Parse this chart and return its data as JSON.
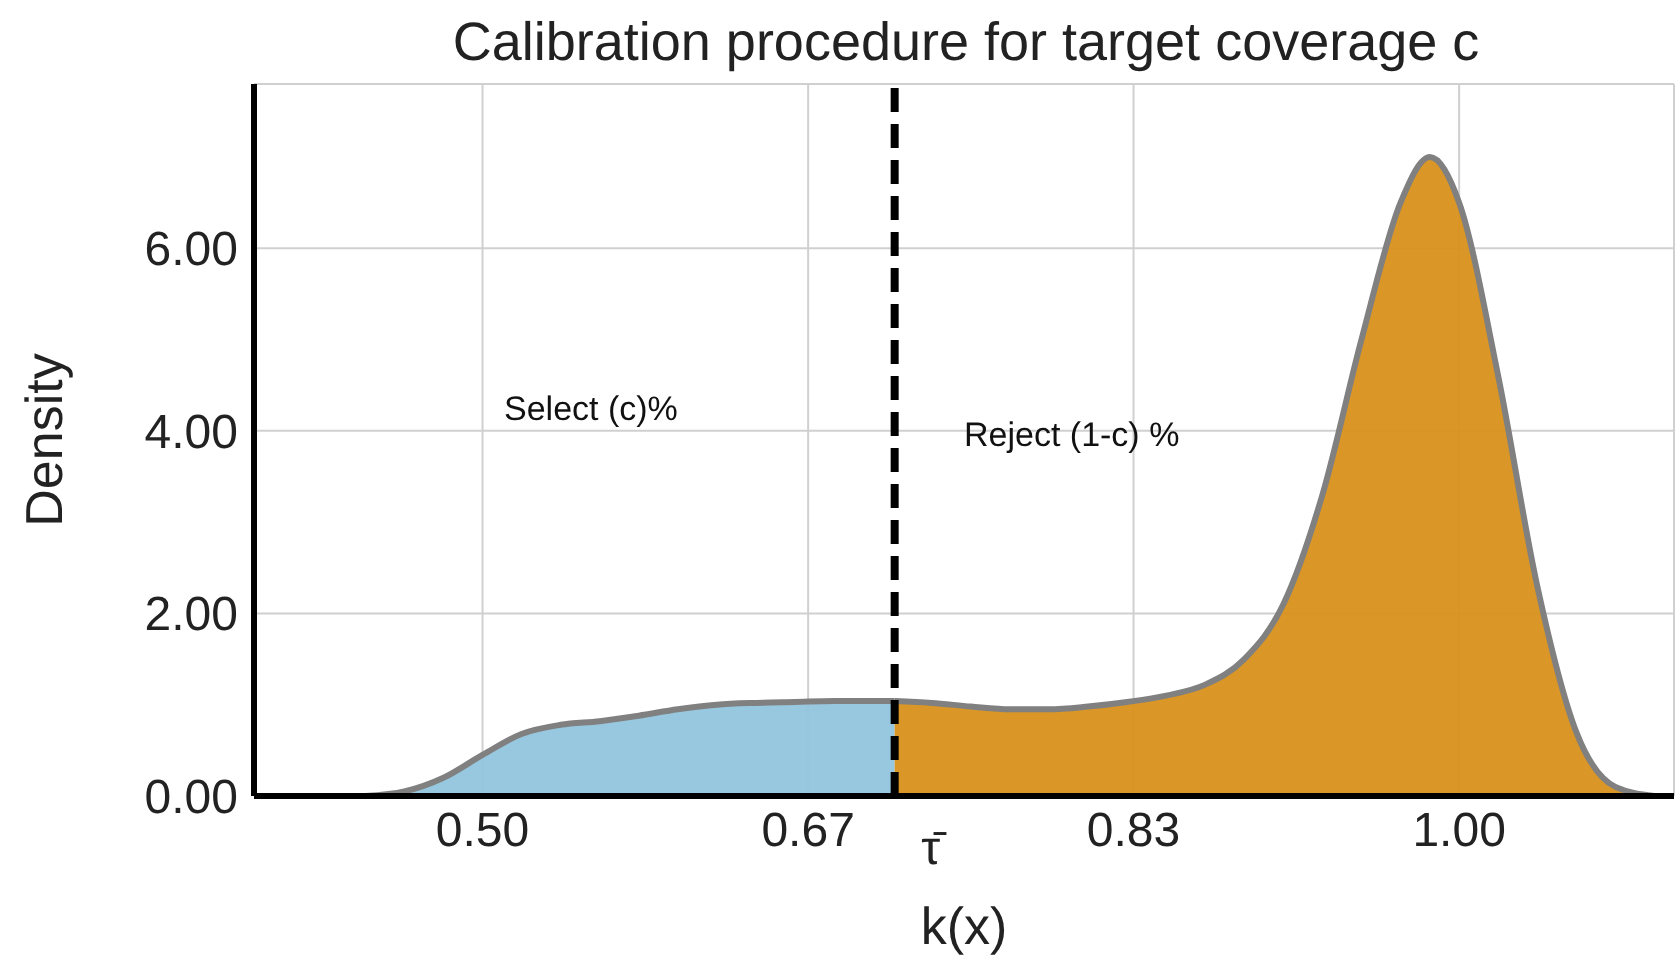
{
  "chart_data": {
    "type": "area",
    "title": "Calibration procedure for target coverage c",
    "xlabel": "k(x)",
    "ylabel": "Density",
    "series": [
      {
        "color": "#92c5de",
        "x": [
          0.44,
          0.46,
          0.48,
          0.5,
          0.52,
          0.54,
          0.56,
          0.58,
          0.6,
          0.62,
          0.64,
          0.66,
          0.68,
          0.7,
          0.711
        ],
        "values": [
          0,
          0.05,
          0.2,
          0.45,
          0.68,
          0.78,
          0.82,
          0.88,
          0.95,
          1.0,
          1.02,
          1.03,
          1.04,
          1.04,
          1.04
        ]
      },
      {
        "color": "#d8901a",
        "x": [
          0.711,
          0.73,
          0.75,
          0.77,
          0.79,
          0.81,
          0.83,
          0.85,
          0.87,
          0.89,
          0.91,
          0.93,
          0.95,
          0.97,
          0.985,
          1.0,
          1.02,
          1.04,
          1.06,
          1.08,
          1.1
        ],
        "values": [
          1.04,
          1.02,
          0.98,
          0.95,
          0.95,
          0.98,
          1.03,
          1.1,
          1.22,
          1.5,
          2.1,
          3.3,
          5.0,
          6.5,
          7.0,
          6.5,
          4.6,
          2.3,
          0.7,
          0.1,
          0
        ]
      }
    ],
    "xlim": [
      0.383,
      1.11
    ],
    "xticks": [
      {
        "value": 0.5,
        "label": "0.50"
      },
      {
        "value": 0.6667,
        "label": "0.67"
      },
      {
        "value": 0.8333,
        "label": "0.83"
      },
      {
        "value": 1.0,
        "label": "1.00"
      }
    ],
    "ylim": [
      0,
      7.8
    ],
    "yticks": [
      {
        "value": 0,
        "label": "0.00"
      },
      {
        "value": 2,
        "label": "2.00"
      },
      {
        "value": 4,
        "label": "4.00"
      },
      {
        "value": 6,
        "label": "6.00"
      }
    ],
    "ref_lines": [
      {
        "axis": "x",
        "value": 0.711,
        "label": "τ̄",
        "color": "#000000",
        "line_style": "dashed"
      }
    ],
    "annotations": [
      "Select (c)%",
      "Reject (1-c) %"
    ],
    "grid": true
  }
}
